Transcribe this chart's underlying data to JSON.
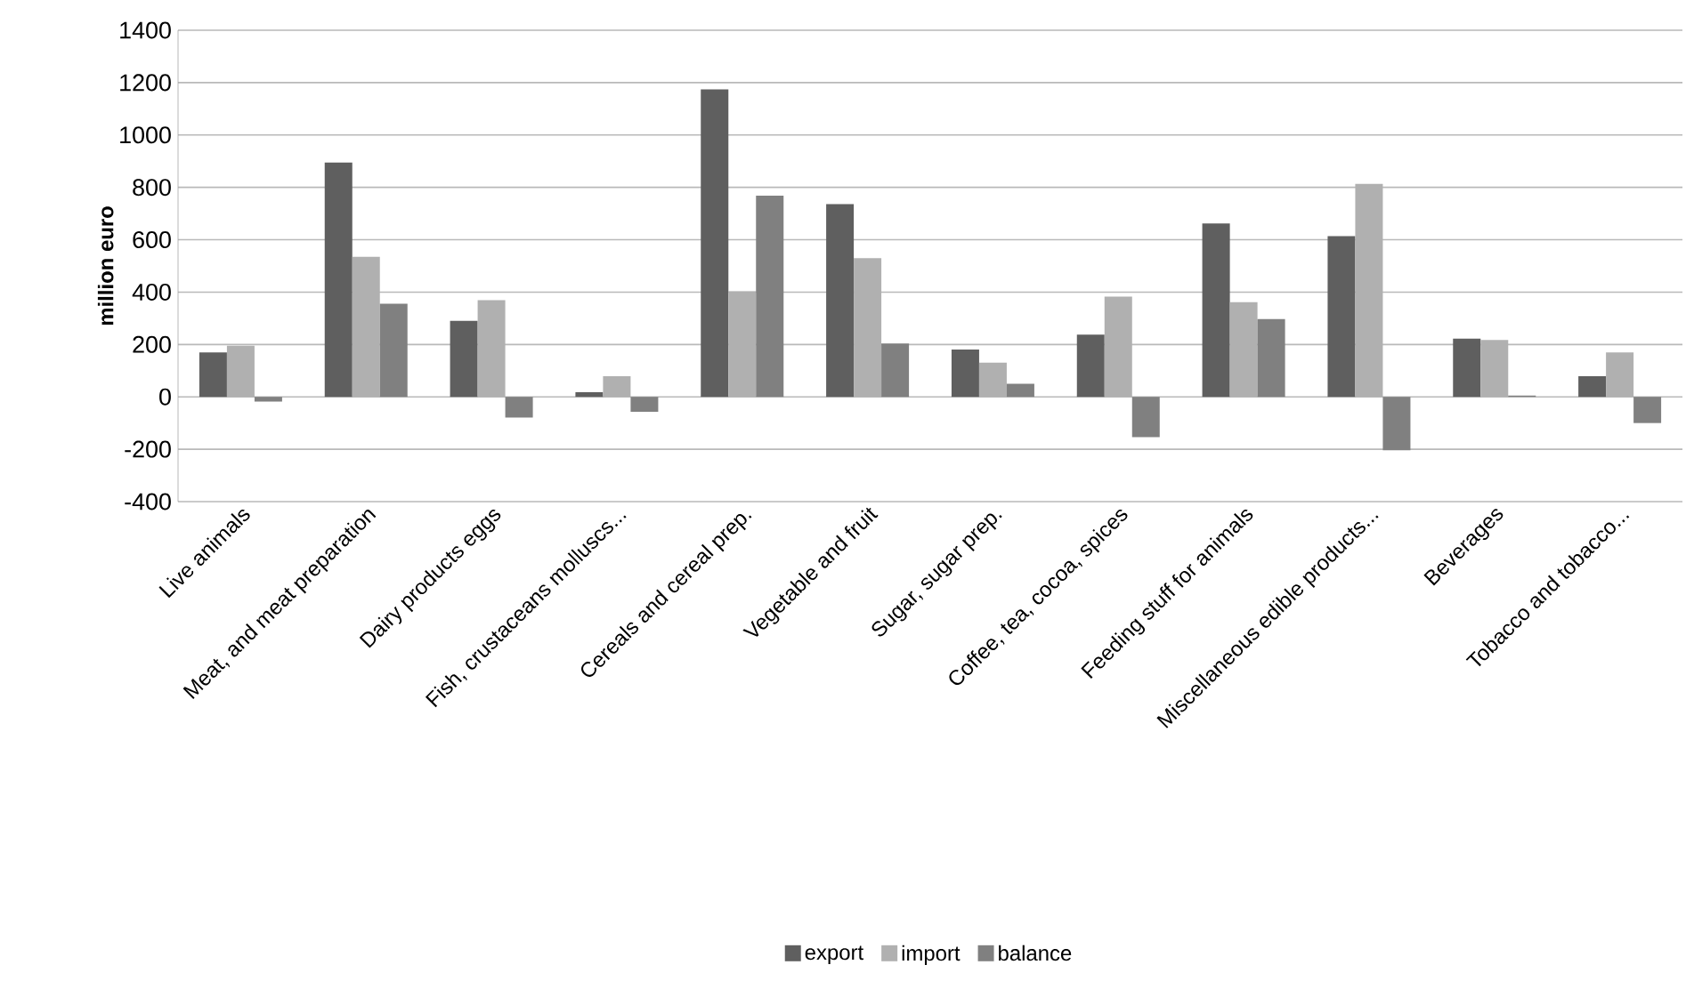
{
  "chart_data": {
    "type": "bar",
    "ylabel": "million euro",
    "categories": [
      "Live animals",
      "Meat, and meat preparation",
      "Dairy products eggs",
      "Fish, crustaceans molluscs...",
      "Cereals and cereal prep.",
      "Vegetable and fruit",
      "Sugar, sugar prep.",
      "Coffee, tea, cocoa, spices",
      "Feeding stuff for animals",
      "Miscellaneous edible products...",
      "Beverages",
      "Tobacco and tobacco..."
    ],
    "series": [
      {
        "name": "export",
        "color": "#5f5f5f",
        "values": [
          170,
          895,
          290,
          18,
          1174,
          736,
          181,
          238,
          662,
          614,
          222,
          79
        ]
      },
      {
        "name": "import",
        "color": "#b0b0b0",
        "values": [
          195,
          535,
          369,
          79,
          403,
          530,
          131,
          383,
          362,
          813,
          217,
          170
        ]
      },
      {
        "name": "balance",
        "color": "#808080",
        "values": [
          -18,
          356,
          -79,
          -57,
          768,
          204,
          50,
          -154,
          297,
          -204,
          5,
          -100
        ]
      }
    ],
    "ylim": [
      -400,
      1400
    ],
    "yticks": [
      -400,
      -200,
      0,
      200,
      400,
      600,
      800,
      1000,
      1200,
      1400
    ],
    "grid": "y",
    "legend": "bottom"
  }
}
